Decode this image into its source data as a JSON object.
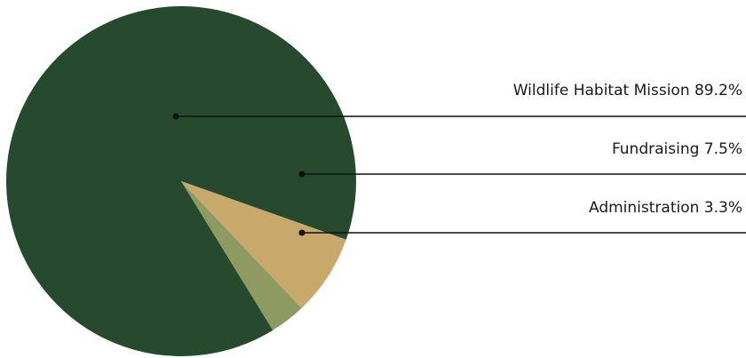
{
  "chart_data": {
    "type": "pie",
    "title": "",
    "slices": [
      {
        "label": "Wildlife Habitat Mission",
        "value": 89.2,
        "value_label": "89.2%",
        "color": "#274a2e"
      },
      {
        "label": "Fundraising",
        "value": 7.5,
        "value_label": "7.5%",
        "color": "#c9a96b"
      },
      {
        "label": "Administration",
        "value": 3.3,
        "value_label": "3.3%",
        "color": "#8f9a63"
      }
    ],
    "legend": "none",
    "label_style": "leader-lines-right"
  }
}
